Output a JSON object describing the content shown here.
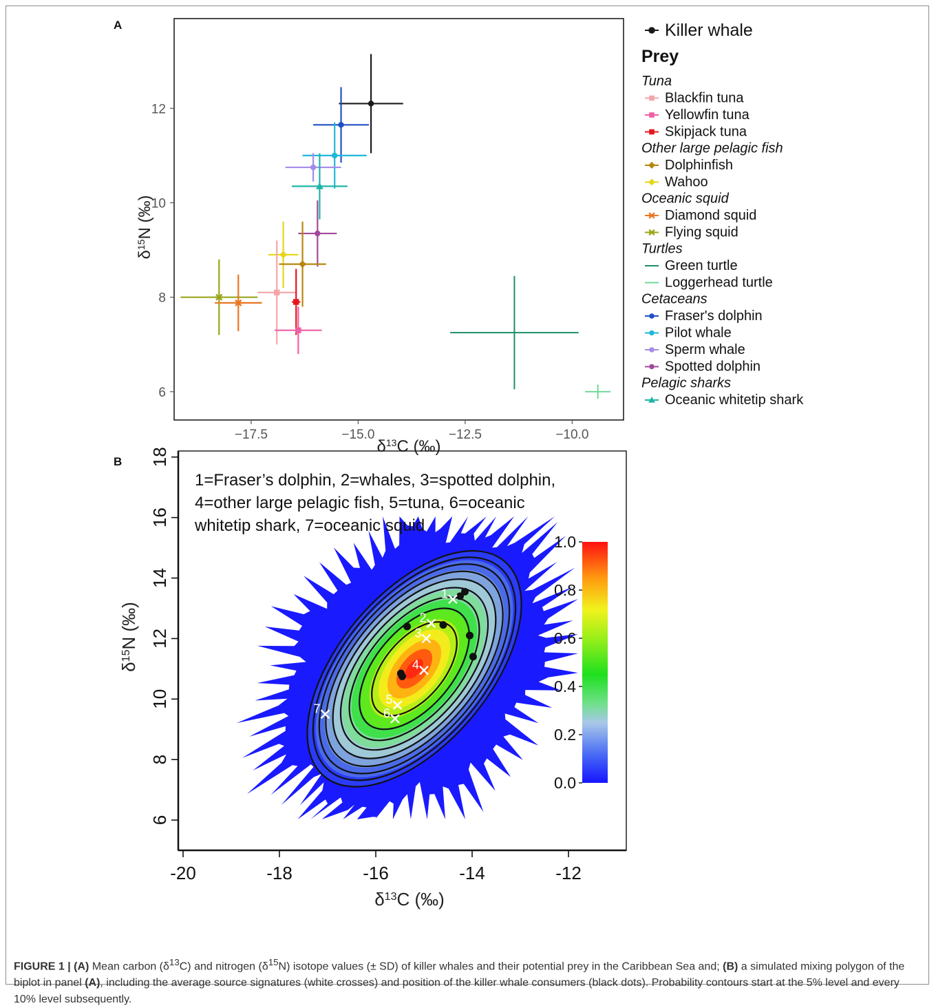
{
  "figure": {
    "caption": {
      "figure_label": "FIGURE 1 |",
      "panel_a": "(A)",
      "text_1": "Mean carbon (δ",
      "sup_13": "13",
      "text_2": "C) and nitrogen (δ",
      "sup_15": "15",
      "text_3": "N) isotope values (± SD) of killer whales and their potential prey in the Caribbean Sea and;",
      "panel_b": "(B)",
      "text_4": "a simulated mixing polygon of the biplot in panel",
      "panel_a_ref": "(A)",
      "text_5": ", including the average source signatures (white crosses) and position of the killer whale consumers (black dots). Probability contours start at the 5% level and every 10% level subsequently."
    }
  },
  "chart_data": [
    {
      "panel": "A",
      "type": "scatter",
      "xlabel": "δ13C (‰)",
      "ylabel": "δ15N (‰)",
      "xlim": [
        -19.3,
        -8.8
      ],
      "ylim": [
        5.4,
        13.9
      ],
      "xticks": [
        -17.5,
        -15.0,
        -12.5,
        -10.0
      ],
      "xtick_labels": [
        "−17.5",
        "−15.0",
        "−12.5",
        "−10.0"
      ],
      "yticks": [
        6,
        8,
        10,
        12
      ],
      "ytick_labels": [
        "6",
        "8",
        "10",
        "12"
      ],
      "legend_position": "right",
      "legend_groups": [
        {
          "title": "",
          "items": [
            {
              "name": "Killer whale",
              "color": "#1a1a1a",
              "marker": "circle"
            }
          ]
        },
        {
          "title": "Prey",
          "bold": true,
          "items": []
        },
        {
          "title": "Tuna",
          "items": [
            {
              "name": "Blackfin tuna",
              "color": "#f4a6a8",
              "marker": "square"
            },
            {
              "name": "Yellowfin tuna",
              "color": "#ef5fa3",
              "marker": "square"
            },
            {
              "name": "Skipjack tuna",
              "color": "#e3171c",
              "marker": "square"
            }
          ]
        },
        {
          "title": "Other large pelagic fish",
          "items": [
            {
              "name": "Dolphinfish",
              "color": "#b8860b",
              "marker": "diamond"
            },
            {
              "name": "Wahoo",
              "color": "#e6d619",
              "marker": "diamond"
            }
          ]
        },
        {
          "title": "Oceanic squid",
          "items": [
            {
              "name": "Diamond squid",
              "color": "#e87722",
              "marker": "star"
            },
            {
              "name": "Flying squid",
              "color": "#9aa51a",
              "marker": "star"
            }
          ]
        },
        {
          "title": "Turtles",
          "items": [
            {
              "name": "Green turtle",
              "color": "#1b8f6a",
              "marker": "line"
            },
            {
              "name": "Loggerhead turtle",
              "color": "#6fd99a",
              "marker": "line"
            }
          ]
        },
        {
          "title": "Cetaceans",
          "items": [
            {
              "name": "Fraser's dolphin",
              "color": "#1f4fc4",
              "marker": "circle"
            },
            {
              "name": "Pilot whale",
              "color": "#1eb8d9",
              "marker": "circle"
            },
            {
              "name": "Sperm whale",
              "color": "#a58be8",
              "marker": "circle"
            },
            {
              "name": "Spotted dolphin",
              "color": "#a2489a",
              "marker": "circle"
            }
          ]
        },
        {
          "title": "Pelagic sharks",
          "items": [
            {
              "name": "Oceanic whitetip shark",
              "color": "#1fb5a8",
              "marker": "triangle"
            }
          ]
        }
      ],
      "series": [
        {
          "name": "Killer whale",
          "color": "#1a1a1a",
          "marker": "circle",
          "x": -14.7,
          "y": 12.1,
          "xsd": 0.75,
          "ysd": 1.05
        },
        {
          "name": "Fraser's dolphin",
          "color": "#1f4fc4",
          "marker": "circle",
          "x": -15.4,
          "y": 11.65,
          "xsd": 0.65,
          "ysd": 0.8
        },
        {
          "name": "Pilot whale",
          "color": "#1eb8d9",
          "marker": "circle",
          "x": -15.55,
          "y": 11.0,
          "xsd": 0.75,
          "ysd": 0.7
        },
        {
          "name": "Sperm whale",
          "color": "#a58be8",
          "marker": "circle",
          "x": -16.05,
          "y": 10.75,
          "xsd": 0.65,
          "ysd": 0.3
        },
        {
          "name": "Oceanic whitetip shark",
          "color": "#1fb5a8",
          "marker": "triangle",
          "x": -15.9,
          "y": 10.35,
          "xsd": 0.65,
          "ysd": 0.7
        },
        {
          "name": "Spotted dolphin",
          "color": "#a2489a",
          "marker": "circle",
          "x": -15.95,
          "y": 9.35,
          "xsd": 0.45,
          "ysd": 0.7
        },
        {
          "name": "Wahoo",
          "color": "#e6d619",
          "marker": "diamond",
          "x": -16.75,
          "y": 8.9,
          "xsd": 0.35,
          "ysd": 0.7
        },
        {
          "name": "Dolphinfish",
          "color": "#b8860b",
          "marker": "diamond",
          "x": -16.3,
          "y": 8.7,
          "xsd": 0.55,
          "ysd": 0.9
        },
        {
          "name": "Blackfin tuna",
          "color": "#f4a6a8",
          "marker": "square",
          "x": -16.9,
          "y": 8.1,
          "xsd": 0.45,
          "ysd": 1.1
        },
        {
          "name": "Skipjack tuna",
          "color": "#e3171c",
          "marker": "square",
          "x": -16.45,
          "y": 7.9,
          "xsd": 0.1,
          "ysd": 0.7
        },
        {
          "name": "Yellowfin tuna",
          "color": "#ef5fa3",
          "marker": "square",
          "x": -16.4,
          "y": 7.3,
          "xsd": 0.55,
          "ysd": 0.5
        },
        {
          "name": "Flying squid",
          "color": "#9aa51a",
          "marker": "star",
          "x": -18.25,
          "y": 8.0,
          "xsd": 0.9,
          "ysd": 0.8
        },
        {
          "name": "Diamond squid",
          "color": "#e87722",
          "marker": "star",
          "x": -17.8,
          "y": 7.88,
          "xsd": 0.55,
          "ysd": 0.6
        },
        {
          "name": "Green turtle",
          "color": "#1b8f6a",
          "marker": "line",
          "x": -11.35,
          "y": 7.25,
          "xsd": 1.5,
          "ysd": 1.2
        },
        {
          "name": "Loggerhead turtle",
          "color": "#6fd99a",
          "marker": "line",
          "x": -9.4,
          "y": 6.0,
          "xsd": 0.3,
          "ysd": 0.15
        }
      ]
    },
    {
      "panel": "B",
      "type": "heatmap",
      "xlabel": "δ13C (‰)",
      "ylabel": "δ15N (‰)",
      "xlim": [
        -20.1,
        -10.8
      ],
      "ylim": [
        5.0,
        18.2
      ],
      "xticks": [
        -20,
        -18,
        -16,
        -14,
        -12
      ],
      "xtick_labels": [
        "-20",
        "-18",
        "-16",
        "-14",
        "-12"
      ],
      "yticks": [
        6,
        8,
        10,
        12,
        14,
        16,
        18
      ],
      "ytick_labels": [
        "6",
        "8",
        "10",
        "12",
        "14",
        "16",
        "18"
      ],
      "annotation": [
        "1=Fraser’s dolphin, 2=whales, 3=spotted dolphin,",
        "4=other large pelagic fish, 5=tuna, 6=oceanic",
        "whitetip shark, 7=oceanic squid"
      ],
      "colorbar": {
        "min": 0.0,
        "max": 1.0,
        "ticks": [
          "0.0",
          "0.2",
          "0.4",
          "0.6",
          "0.8",
          "1.0"
        ]
      },
      "contour_levels": [
        0.05,
        0.15,
        0.25,
        0.35,
        0.45,
        0.55,
        0.65,
        0.75,
        0.85
      ],
      "density_center": {
        "x": -15.2,
        "y": 11.0
      },
      "sources": [
        {
          "label": "1",
          "x": -14.4,
          "y": 13.3
        },
        {
          "label": "2",
          "x": -14.85,
          "y": 12.5
        },
        {
          "label": "3",
          "x": -14.95,
          "y": 12.0
        },
        {
          "label": "4",
          "x": -15.0,
          "y": 10.95
        },
        {
          "label": "5",
          "x": -15.55,
          "y": 9.8
        },
        {
          "label": "6",
          "x": -15.6,
          "y": 9.35
        },
        {
          "label": "7",
          "x": -17.05,
          "y": 9.5
        }
      ],
      "consumers": [
        {
          "x": -14.15,
          "y": 13.55
        },
        {
          "x": -14.25,
          "y": 13.4
        },
        {
          "x": -15.35,
          "y": 12.4
        },
        {
          "x": -14.6,
          "y": 12.45
        },
        {
          "x": -14.05,
          "y": 12.1
        },
        {
          "x": -13.98,
          "y": 11.4
        },
        {
          "x": -15.48,
          "y": 10.85
        },
        {
          "x": -15.45,
          "y": 10.75
        }
      ]
    }
  ]
}
